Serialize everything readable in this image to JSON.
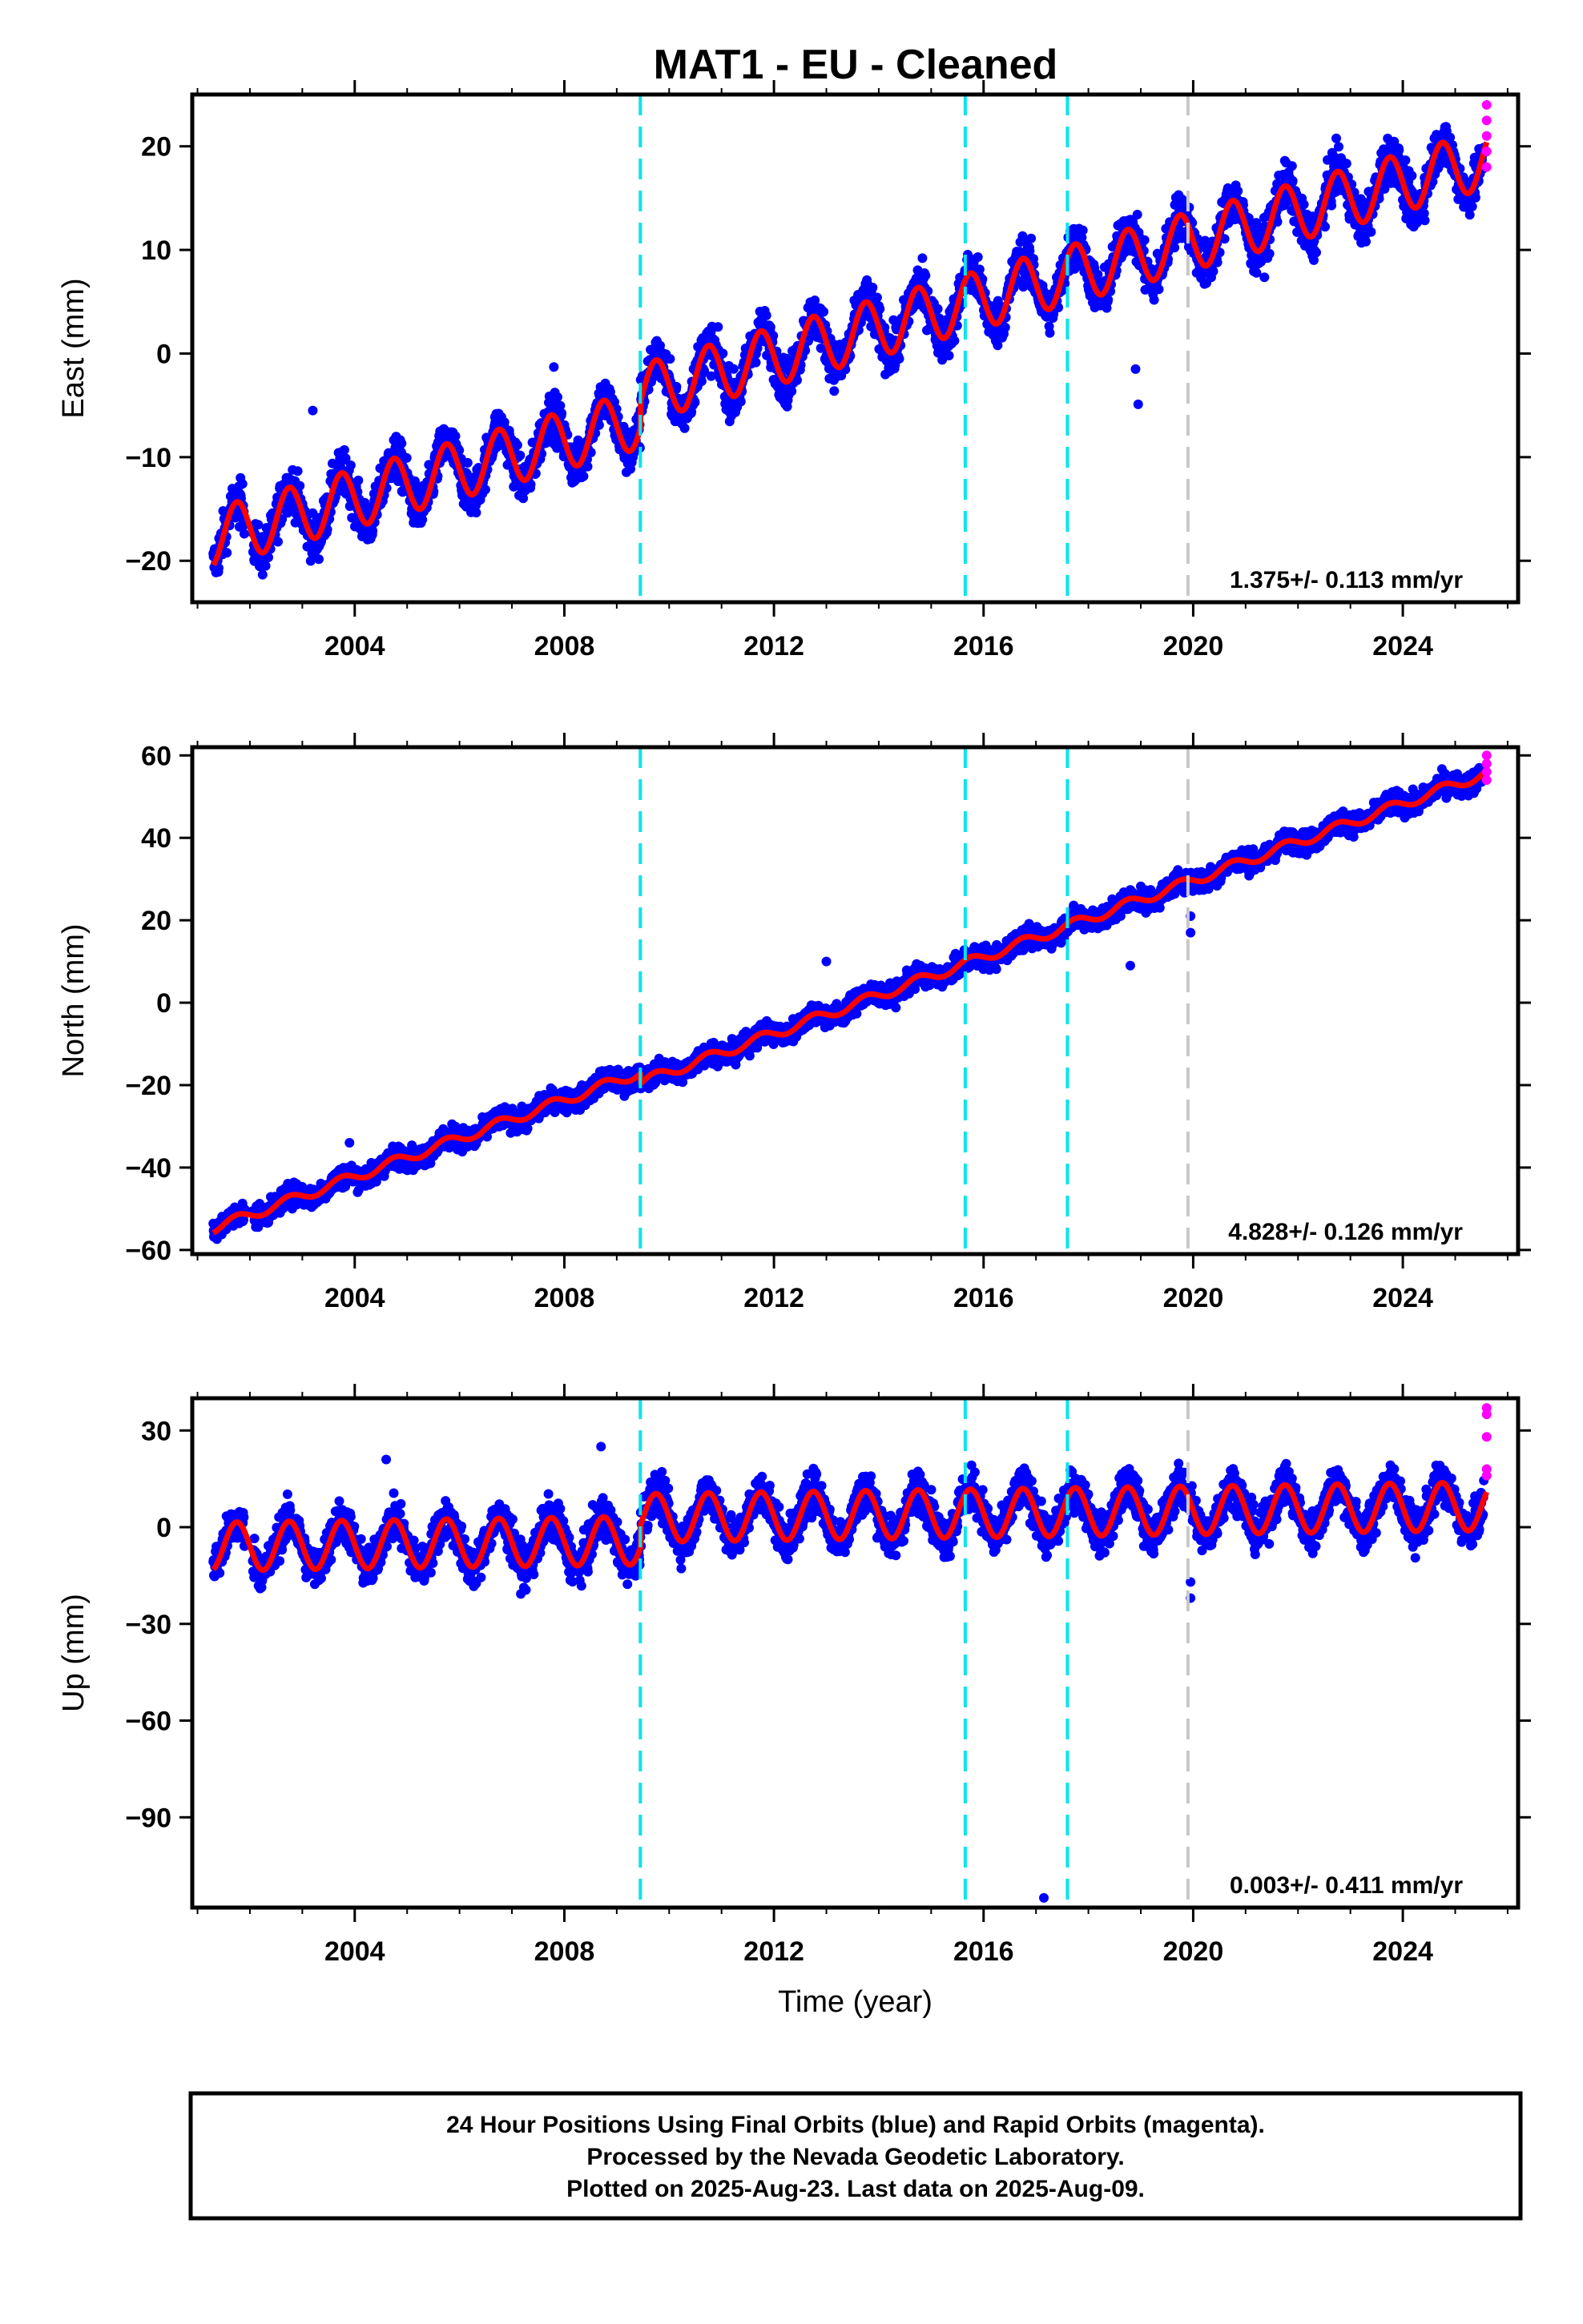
{
  "colors": {
    "final_orbits": "#0000ff",
    "rapid_orbits": "#ff00ff",
    "model": "#ff0000",
    "event_line": "#00e5ee",
    "gray_line": "#c8c8c8",
    "frame": "#000000"
  },
  "chart_data": [
    {
      "type": "scatter",
      "title": "MAT1  - EU - Cleaned",
      "ylabel": "East (mm)",
      "xlabel": "",
      "xlim": [
        2000.9,
        2026.2
      ],
      "ylim": [
        -24,
        25
      ],
      "xticks": [
        2004,
        2008,
        2012,
        2016,
        2020,
        2024
      ],
      "yticks": [
        -20,
        -10,
        0,
        10,
        20
      ],
      "rate": "1.375+/- 0.113 mm/yr",
      "model": {
        "start_year": 2001.3,
        "end_year": 2025.6,
        "start_value": -16.5,
        "end_value": 17.5,
        "annual_amplitude": 2.8,
        "offset_2009": 2.5
      },
      "event_lines": [
        2009.45,
        2015.65,
        2017.6
      ],
      "gray_lines": [
        2019.9
      ],
      "outliers": [
        {
          "x": 2003.2,
          "y": -5.5
        },
        {
          "x": 2007.8,
          "y": -1.3
        },
        {
          "x": 2018.95,
          "y": -4.9
        },
        {
          "x": 2018.9,
          "y": -1.5
        }
      ],
      "rapid_points": [
        {
          "x": 2025.6,
          "y": 24
        },
        {
          "x": 2025.6,
          "y": 22.5
        },
        {
          "x": 2025.6,
          "y": 21
        },
        {
          "x": 2025.6,
          "y": 19.5
        },
        {
          "x": 2025.6,
          "y": 18
        }
      ]
    },
    {
      "type": "scatter",
      "title": "",
      "ylabel": "North (mm)",
      "xlabel": "",
      "xlim": [
        2000.9,
        2026.2
      ],
      "ylim": [
        -61,
        62
      ],
      "xticks": [
        2004,
        2008,
        2012,
        2016,
        2020,
        2024
      ],
      "yticks": [
        -60,
        -40,
        -20,
        0,
        20,
        40,
        60
      ],
      "rate": "4.828+/- 0.126 mm/yr",
      "model": {
        "start_year": 2001.3,
        "end_year": 2025.6,
        "start_value": -56,
        "end_value": 57,
        "annual_amplitude": 1.2,
        "offset_2009": -2.5
      },
      "event_lines": [
        2009.45,
        2015.65,
        2017.6
      ],
      "gray_lines": [
        2019.9
      ],
      "outliers": [
        {
          "x": 2013.0,
          "y": 10
        },
        {
          "x": 2018.8,
          "y": 9
        },
        {
          "x": 2019.95,
          "y": 21
        },
        {
          "x": 2019.95,
          "y": 17
        },
        {
          "x": 2003.9,
          "y": -34
        }
      ],
      "rapid_points": [
        {
          "x": 2025.6,
          "y": 60
        },
        {
          "x": 2025.6,
          "y": 58
        },
        {
          "x": 2025.6,
          "y": 56
        },
        {
          "x": 2025.6,
          "y": 54
        }
      ]
    },
    {
      "type": "scatter",
      "title": "",
      "ylabel": "Up (mm)",
      "xlabel": "Time (year)",
      "xlim": [
        2000.9,
        2026.2
      ],
      "ylim": [
        -118,
        40
      ],
      "xticks": [
        2004,
        2008,
        2012,
        2016,
        2020,
        2024
      ],
      "yticks": [
        -90,
        -60,
        -30,
        0,
        30
      ],
      "rate": "0.003+/- 0.411 mm/yr",
      "model": {
        "start_year": 2001.3,
        "end_year": 2025.6,
        "start_value": -2.5,
        "end_value": 3.0,
        "annual_amplitude": 7.5,
        "offset_2009": 7
      },
      "event_lines": [
        2009.45,
        2015.65,
        2017.6
      ],
      "gray_lines": [
        2019.9
      ],
      "outliers": [
        {
          "x": 2017.15,
          "y": -115
        },
        {
          "x": 2008.7,
          "y": 25
        },
        {
          "x": 2019.95,
          "y": -22
        },
        {
          "x": 2019.95,
          "y": -17
        },
        {
          "x": 2004.6,
          "y": 21
        }
      ],
      "rapid_points": [
        {
          "x": 2025.6,
          "y": 37
        },
        {
          "x": 2025.6,
          "y": 35
        },
        {
          "x": 2025.6,
          "y": 28
        },
        {
          "x": 2025.6,
          "y": 18
        },
        {
          "x": 2025.6,
          "y": 16
        }
      ]
    }
  ],
  "footer": {
    "line1": "24 Hour Positions Using Final Orbits (blue) and Rapid Orbits (magenta).",
    "line2": "Processed by the Nevada Geodetic Laboratory.",
    "line3": "Plotted on 2025-Aug-23. Last data on 2025-Aug-09."
  }
}
